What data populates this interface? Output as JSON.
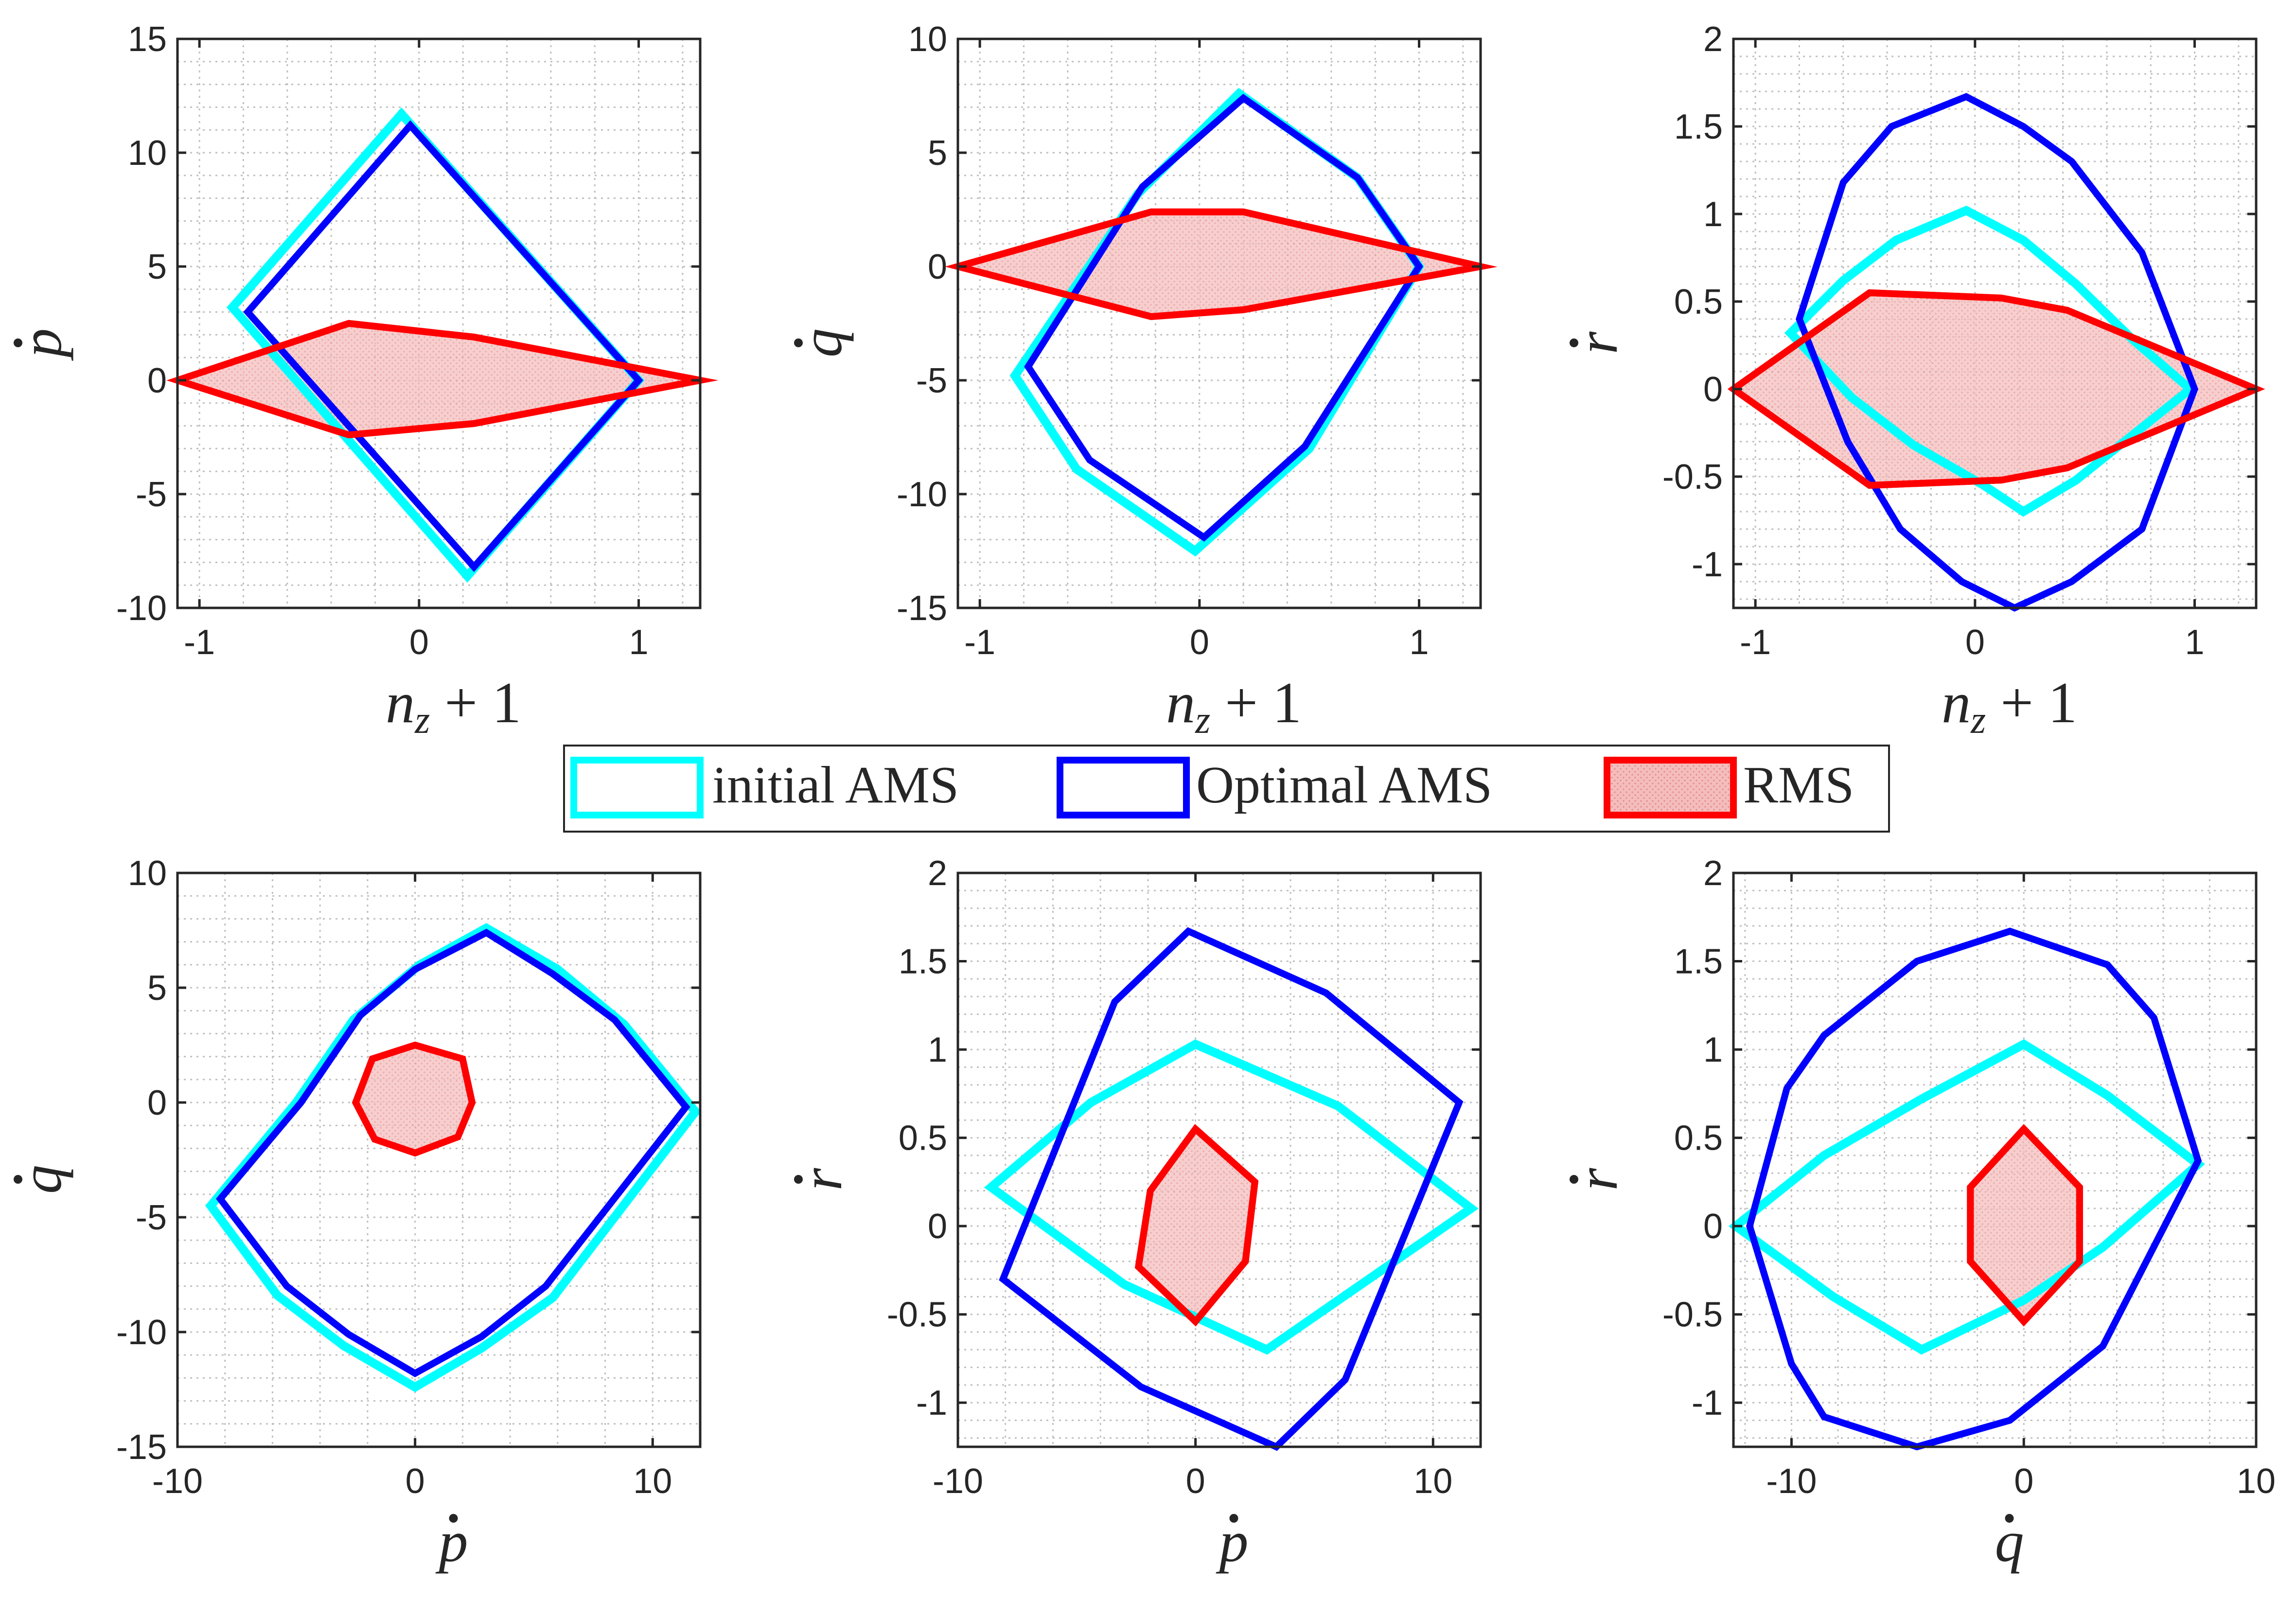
{
  "colors": {
    "initial": "#00FFFF",
    "optimal": "#0000FF",
    "rms_edge": "#FF0000",
    "rms_fill": "#F2B3B3",
    "grid": "#BFBFBF",
    "axis": "#262626"
  },
  "legend": {
    "initial_label": "initial AMS",
    "optimal_label": "Optimal AMS",
    "rms_label": "RMS"
  },
  "chart_data": [
    {
      "type": "area",
      "id": "nz-pdot",
      "xlabel": "n_z + 1",
      "ylabel": "p",
      "ylabel_dot": true,
      "xlim": [
        -1.1,
        1.28
      ],
      "ylim": [
        -10,
        15
      ],
      "xticks": [
        -1,
        0,
        1
      ],
      "xticklabels": [
        "-1",
        "0",
        "1"
      ],
      "yticks": [
        -10,
        -5,
        0,
        5,
        10,
        15
      ],
      "yticklabels": [
        "-10",
        "-5",
        "0",
        "5",
        "10",
        "15"
      ],
      "grid": true,
      "series": [
        {
          "name": "initial AMS",
          "points": [
            [
              -0.08,
              11.7
            ],
            [
              -0.85,
              3.2
            ],
            [
              0.22,
              -8.6
            ],
            [
              1.0,
              0.0
            ],
            [
              -0.08,
              11.7
            ]
          ]
        },
        {
          "name": "Optimal AMS",
          "points": [
            [
              -0.04,
              11.2
            ],
            [
              -0.78,
              3.0
            ],
            [
              0.25,
              -8.2
            ],
            [
              1.0,
              0.0
            ],
            [
              -0.04,
              11.2
            ]
          ]
        },
        {
          "name": "RMS",
          "points": [
            [
              -1.1,
              0.0
            ],
            [
              -0.32,
              2.5
            ],
            [
              0.25,
              1.9
            ],
            [
              1.28,
              0.0
            ],
            [
              0.25,
              -1.9
            ],
            [
              -0.32,
              -2.4
            ],
            [
              -1.1,
              0.0
            ]
          ]
        }
      ]
    },
    {
      "type": "area",
      "id": "nz-qdot",
      "xlabel": "n_z + 1",
      "ylabel": "q",
      "ylabel_dot": true,
      "xlim": [
        -1.1,
        1.28
      ],
      "ylim": [
        -15,
        10
      ],
      "xticks": [
        -1,
        0,
        1
      ],
      "xticklabels": [
        "-1",
        "0",
        "1"
      ],
      "yticks": [
        -15,
        -10,
        -5,
        0,
        5,
        10
      ],
      "yticklabels": [
        "-15",
        "-10",
        "-5",
        "0",
        "5",
        "10"
      ],
      "grid": true,
      "series": [
        {
          "name": "initial AMS",
          "points": [
            [
              0.18,
              7.6
            ],
            [
              -0.28,
              3.2
            ],
            [
              -0.84,
              -4.8
            ],
            [
              -0.56,
              -8.9
            ],
            [
              -0.02,
              -12.5
            ],
            [
              0.5,
              -8.0
            ],
            [
              1.0,
              0.0
            ],
            [
              0.72,
              3.9
            ],
            [
              0.18,
              7.6
            ]
          ]
        },
        {
          "name": "Optimal AMS",
          "points": [
            [
              0.2,
              7.4
            ],
            [
              -0.26,
              3.5
            ],
            [
              -0.78,
              -4.4
            ],
            [
              -0.5,
              -8.5
            ],
            [
              0.02,
              -11.9
            ],
            [
              0.48,
              -7.9
            ],
            [
              1.0,
              0.0
            ],
            [
              0.72,
              3.9
            ],
            [
              0.2,
              7.4
            ]
          ]
        },
        {
          "name": "RMS",
          "points": [
            [
              -1.1,
              0.0
            ],
            [
              -0.22,
              2.4
            ],
            [
              0.2,
              2.4
            ],
            [
              1.28,
              0.0
            ],
            [
              0.2,
              -1.9
            ],
            [
              -0.22,
              -2.2
            ],
            [
              -1.1,
              0.0
            ]
          ]
        }
      ]
    },
    {
      "type": "area",
      "id": "nz-rdot",
      "xlabel": "n_z + 1",
      "ylabel": "r",
      "ylabel_dot": true,
      "xlim": [
        -1.1,
        1.28
      ],
      "ylim": [
        -1.25,
        2
      ],
      "xticks": [
        -1,
        0,
        1
      ],
      "xticklabels": [
        "-1",
        "0",
        "1"
      ],
      "yticks": [
        -1,
        -0.5,
        0,
        0.5,
        1,
        1.5,
        2
      ],
      "yticklabels": [
        "-1",
        "-0.5",
        "0",
        "0.5",
        "1",
        "1.5",
        "2"
      ],
      "grid": true,
      "series": [
        {
          "name": "initial AMS",
          "points": [
            [
              -0.04,
              1.02
            ],
            [
              -0.36,
              0.85
            ],
            [
              -0.6,
              0.62
            ],
            [
              -0.84,
              0.32
            ],
            [
              -0.56,
              -0.05
            ],
            [
              -0.28,
              -0.32
            ],
            [
              0.04,
              -0.55
            ],
            [
              0.22,
              -0.7
            ],
            [
              0.46,
              -0.52
            ],
            [
              0.98,
              0.0
            ],
            [
              0.72,
              0.28
            ],
            [
              0.46,
              0.6
            ],
            [
              0.22,
              0.85
            ],
            [
              -0.04,
              1.02
            ]
          ]
        },
        {
          "name": "Optimal AMS",
          "points": [
            [
              -0.04,
              1.67
            ],
            [
              -0.38,
              1.5
            ],
            [
              -0.6,
              1.18
            ],
            [
              -0.8,
              0.4
            ],
            [
              -0.58,
              -0.3
            ],
            [
              -0.34,
              -0.8
            ],
            [
              -0.06,
              -1.1
            ],
            [
              0.18,
              -1.25
            ],
            [
              0.44,
              -1.1
            ],
            [
              0.76,
              -0.8
            ],
            [
              1.0,
              0.0
            ],
            [
              0.76,
              0.78
            ],
            [
              0.44,
              1.3
            ],
            [
              0.22,
              1.5
            ],
            [
              -0.04,
              1.67
            ]
          ]
        },
        {
          "name": "RMS",
          "points": [
            [
              -1.1,
              0.0
            ],
            [
              -0.48,
              0.55
            ],
            [
              0.12,
              0.52
            ],
            [
              0.42,
              0.45
            ],
            [
              1.28,
              0.0
            ],
            [
              0.42,
              -0.45
            ],
            [
              0.12,
              -0.52
            ],
            [
              -0.48,
              -0.55
            ],
            [
              -1.1,
              0.0
            ]
          ]
        }
      ]
    },
    {
      "type": "area",
      "id": "pdot-qdot",
      "xlabel": "p",
      "xlabel_dot": true,
      "ylabel": "q",
      "ylabel_dot": true,
      "xlim": [
        -10,
        12
      ],
      "ylim": [
        -15,
        10
      ],
      "xticks": [
        -10,
        0,
        10
      ],
      "xticklabels": [
        "-10",
        "0",
        "10"
      ],
      "yticks": [
        -15,
        -10,
        -5,
        0,
        5,
        10
      ],
      "yticklabels": [
        "-15",
        "-10",
        "-5",
        "0",
        "5",
        "10"
      ],
      "grid": true,
      "series": [
        {
          "name": "initial AMS",
          "points": [
            [
              3.0,
              7.6
            ],
            [
              6.0,
              5.8
            ],
            [
              8.8,
              3.4
            ],
            [
              11.8,
              -0.4
            ],
            [
              5.8,
              -8.5
            ],
            [
              2.8,
              -10.7
            ],
            [
              0.0,
              -12.4
            ],
            [
              -3.0,
              -10.6
            ],
            [
              -5.8,
              -8.4
            ],
            [
              -8.6,
              -4.5
            ],
            [
              -5.0,
              0.0
            ],
            [
              -2.6,
              3.6
            ],
            [
              0.2,
              6.0
            ],
            [
              3.0,
              7.6
            ]
          ]
        },
        {
          "name": "Optimal AMS",
          "points": [
            [
              3.0,
              7.4
            ],
            [
              5.8,
              5.6
            ],
            [
              8.4,
              3.6
            ],
            [
              11.4,
              -0.2
            ],
            [
              5.5,
              -8.0
            ],
            [
              2.8,
              -10.2
            ],
            [
              0.0,
              -11.8
            ],
            [
              -2.8,
              -10.1
            ],
            [
              -5.4,
              -8.0
            ],
            [
              -8.2,
              -4.2
            ],
            [
              -4.8,
              0.0
            ],
            [
              -2.3,
              3.8
            ],
            [
              0.0,
              5.8
            ],
            [
              3.0,
              7.4
            ]
          ]
        },
        {
          "name": "RMS",
          "points": [
            [
              0.0,
              2.5
            ],
            [
              2.0,
              1.9
            ],
            [
              2.4,
              0.0
            ],
            [
              1.8,
              -1.5
            ],
            [
              0.0,
              -2.2
            ],
            [
              -1.7,
              -1.6
            ],
            [
              -2.5,
              0.0
            ],
            [
              -1.8,
              1.9
            ],
            [
              0.0,
              2.5
            ]
          ]
        }
      ]
    },
    {
      "type": "area",
      "id": "pdot-rdot",
      "xlabel": "p",
      "xlabel_dot": true,
      "ylabel": "r",
      "ylabel_dot": true,
      "xlim": [
        -10,
        12
      ],
      "ylim": [
        -1.25,
        2
      ],
      "xticks": [
        -10,
        0,
        10
      ],
      "xticklabels": [
        "-10",
        "0",
        "10"
      ],
      "yticks": [
        -1,
        -0.5,
        0,
        0.5,
        1,
        1.5,
        2
      ],
      "yticklabels": [
        "-1",
        "-0.5",
        "0",
        "0.5",
        "1",
        "1.5",
        "2"
      ],
      "grid": true,
      "series": [
        {
          "name": "initial AMS",
          "points": [
            [
              0.0,
              1.03
            ],
            [
              -4.4,
              0.7
            ],
            [
              -8.6,
              0.22
            ],
            [
              -3.0,
              -0.33
            ],
            [
              3.0,
              -0.7
            ],
            [
              11.6,
              0.1
            ],
            [
              6.0,
              0.68
            ],
            [
              0.0,
              1.03
            ]
          ]
        },
        {
          "name": "Optimal AMS",
          "points": [
            [
              -0.3,
              1.67
            ],
            [
              -3.4,
              1.27
            ],
            [
              -8.1,
              -0.3
            ],
            [
              -2.3,
              -0.91
            ],
            [
              3.4,
              -1.25
            ],
            [
              6.3,
              -0.87
            ],
            [
              11.1,
              0.7
            ],
            [
              5.5,
              1.32
            ],
            [
              -0.3,
              1.67
            ]
          ]
        },
        {
          "name": "RMS",
          "points": [
            [
              0.0,
              0.55
            ],
            [
              2.5,
              0.25
            ],
            [
              2.1,
              -0.2
            ],
            [
              0.0,
              -0.54
            ],
            [
              -2.4,
              -0.23
            ],
            [
              -1.9,
              0.2
            ],
            [
              0.0,
              0.55
            ]
          ]
        }
      ]
    },
    {
      "type": "area",
      "id": "qdot-rdot",
      "xlabel": "q",
      "xlabel_dot": true,
      "ylabel": "r",
      "ylabel_dot": true,
      "xlim": [
        -12.5,
        10
      ],
      "ylim": [
        -1.25,
        2
      ],
      "xticks": [
        -10,
        0,
        10
      ],
      "xticklabels": [
        "-10",
        "0",
        "10"
      ],
      "yticks": [
        -1,
        -0.5,
        0,
        0.5,
        1,
        1.5,
        2
      ],
      "yticklabels": [
        "-1",
        "-0.5",
        "0",
        "0.5",
        "1",
        "1.5",
        "2"
      ],
      "grid": true,
      "series": [
        {
          "name": "initial AMS",
          "points": [
            [
              0.0,
              1.03
            ],
            [
              -4.4,
              0.72
            ],
            [
              -8.6,
              0.4
            ],
            [
              -12.4,
              0.0
            ],
            [
              -8.2,
              -0.4
            ],
            [
              -4.4,
              -0.7
            ],
            [
              0.0,
              -0.42
            ],
            [
              3.4,
              -0.12
            ],
            [
              7.5,
              0.35
            ],
            [
              3.6,
              0.74
            ],
            [
              0.0,
              1.03
            ]
          ]
        },
        {
          "name": "Optimal AMS",
          "points": [
            [
              -0.6,
              1.67
            ],
            [
              -4.6,
              1.5
            ],
            [
              -8.6,
              1.08
            ],
            [
              -10.2,
              0.78
            ],
            [
              -11.8,
              0.0
            ],
            [
              -10.0,
              -0.78
            ],
            [
              -8.6,
              -1.08
            ],
            [
              -4.6,
              -1.25
            ],
            [
              -0.6,
              -1.1
            ],
            [
              3.4,
              -0.68
            ],
            [
              7.5,
              0.37
            ],
            [
              5.6,
              1.18
            ],
            [
              3.6,
              1.48
            ],
            [
              -0.6,
              1.67
            ]
          ]
        },
        {
          "name": "RMS",
          "points": [
            [
              0.0,
              0.55
            ],
            [
              2.4,
              0.22
            ],
            [
              2.4,
              -0.2
            ],
            [
              0.0,
              -0.54
            ],
            [
              -2.3,
              -0.2
            ],
            [
              -2.3,
              0.22
            ],
            [
              0.0,
              0.55
            ]
          ]
        }
      ]
    }
  ]
}
